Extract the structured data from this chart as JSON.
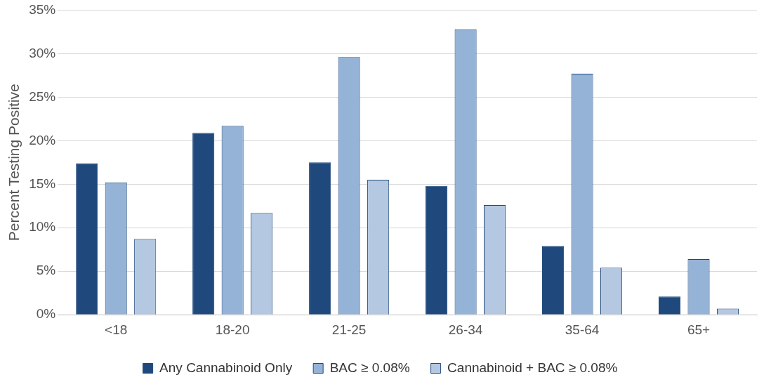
{
  "chart_data": {
    "type": "bar",
    "ylabel": "Percent Testing Positive",
    "categories": [
      "<18",
      "18-20",
      "21-25",
      "26-34",
      "35-64",
      "65+"
    ],
    "series": [
      {
        "name": "Any Cannabinoid Only",
        "color": "#1f497d",
        "values": [
          17.4,
          20.9,
          17.5,
          14.8,
          7.9,
          2.1
        ]
      },
      {
        "name": "BAC ≥ 0.08%",
        "color": "#95b3d7",
        "values": [
          15.2,
          21.7,
          29.6,
          32.8,
          27.7,
          6.4
        ]
      },
      {
        "name": "Cannabinoid + BAC ≥ 0.08%",
        "color": "#b4c8e2",
        "values": [
          8.7,
          11.7,
          15.5,
          12.6,
          5.4,
          0.7
        ]
      }
    ],
    "ylim": [
      0,
      35
    ],
    "yticks": [
      {
        "value": 0,
        "label": "0%"
      },
      {
        "value": 5,
        "label": "5%"
      },
      {
        "value": 10,
        "label": "10%"
      },
      {
        "value": 15,
        "label": "15%"
      },
      {
        "value": 20,
        "label": "20%"
      },
      {
        "value": 25,
        "label": "25%"
      },
      {
        "value": 30,
        "label": "30%"
      },
      {
        "value": 35,
        "label": "35%"
      }
    ],
    "grid": "y",
    "legend": "bottom"
  }
}
